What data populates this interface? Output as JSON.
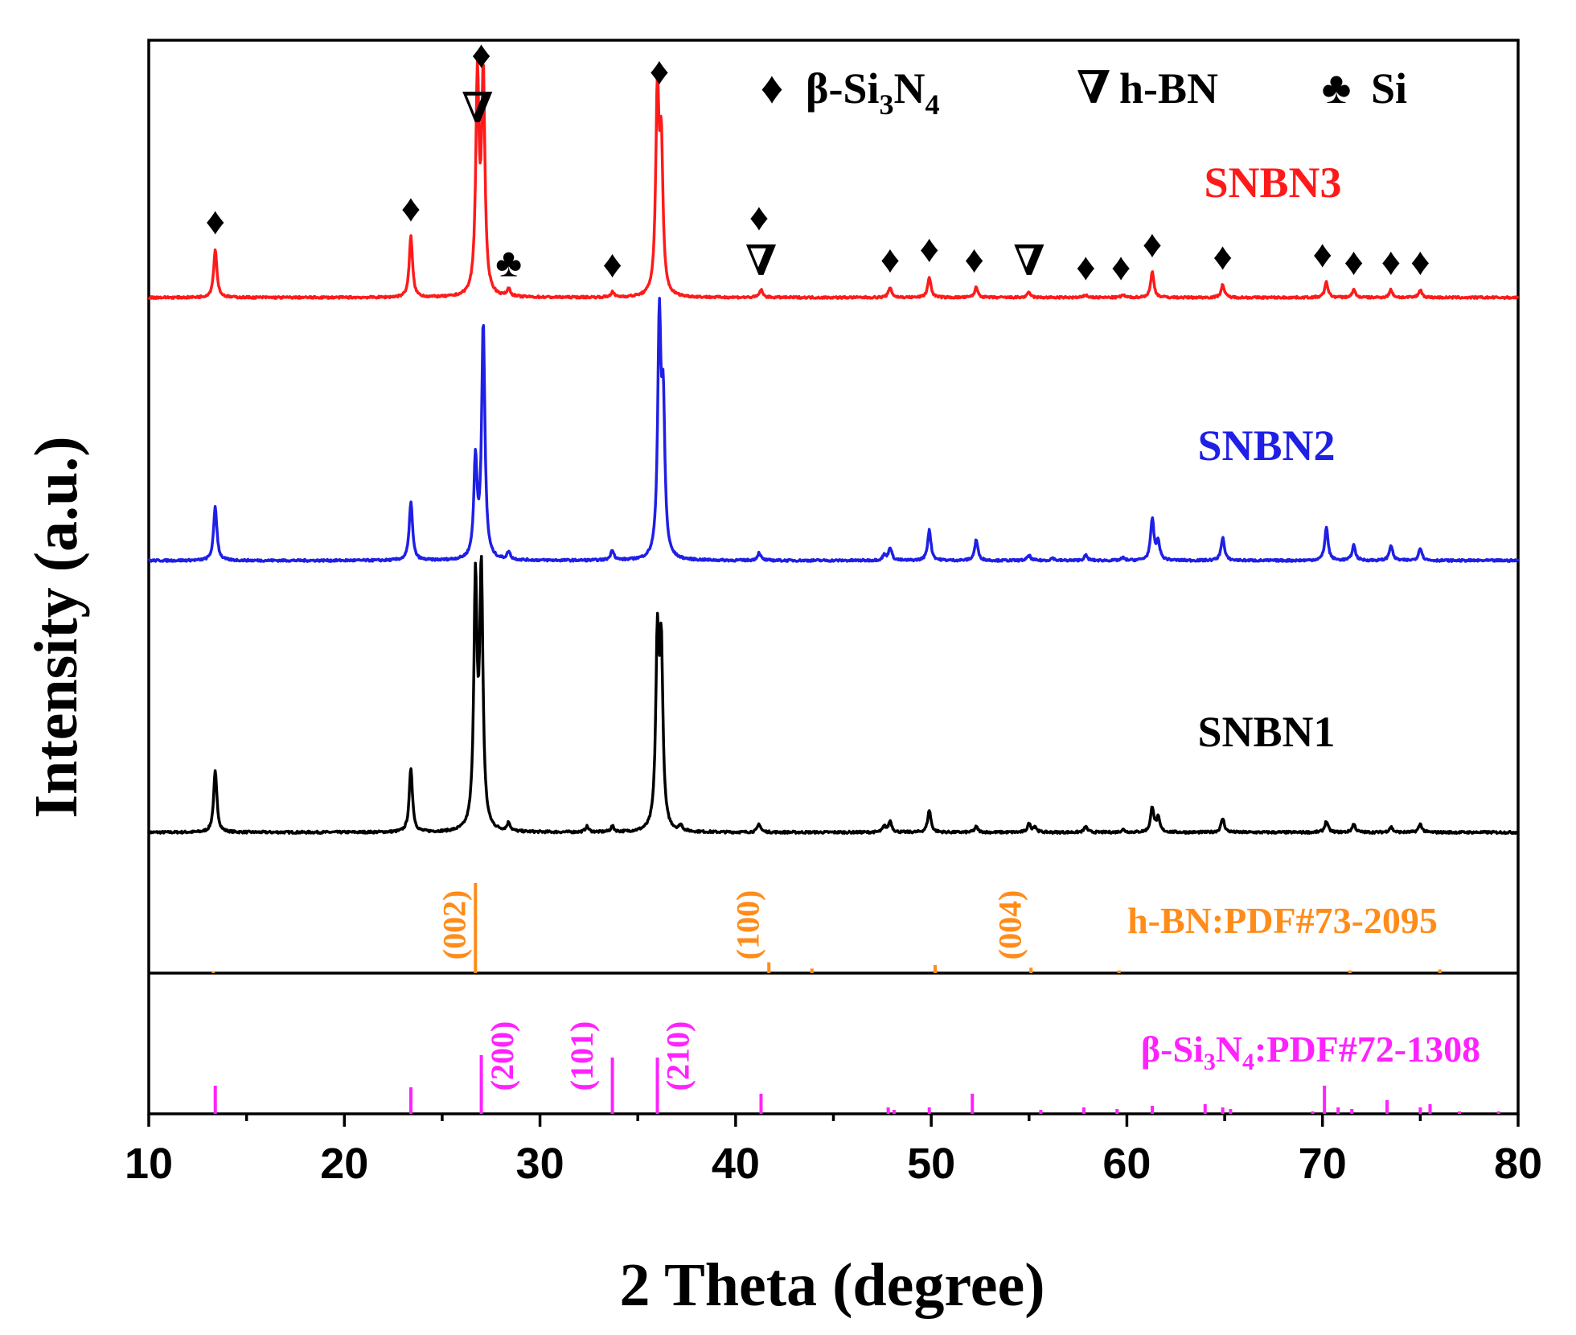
{
  "chart_data": {
    "type": "line",
    "title": "",
    "xlabel": "2 Theta (degree)",
    "ylabel": "Intensity (a.u.)",
    "xlim": [
      10,
      80
    ],
    "xticks": [
      10,
      20,
      30,
      40,
      50,
      60,
      70,
      80
    ],
    "colors": {
      "SNBN1": "#000000",
      "SNBN2": "#1f1fe6",
      "SNBN3": "#ff1a1a",
      "hBN": "#ff8c1a",
      "bSiN": "#ff22ff"
    },
    "series": [
      {
        "name": "SNBN1",
        "color_key": "SNBN1",
        "peaks": [
          [
            13.4,
            0.22
          ],
          [
            23.4,
            0.23
          ],
          [
            26.7,
            0.88
          ],
          [
            27.0,
            0.92
          ],
          [
            28.4,
            0.03
          ],
          [
            32.4,
            0.02
          ],
          [
            33.7,
            0.02
          ],
          [
            36.0,
            0.66
          ],
          [
            36.2,
            0.62
          ],
          [
            37.2,
            0.02
          ],
          [
            41.2,
            0.03
          ],
          [
            47.6,
            0.02
          ],
          [
            47.9,
            0.04
          ],
          [
            49.9,
            0.08
          ],
          [
            52.3,
            0.02
          ],
          [
            55.0,
            0.03
          ],
          [
            55.3,
            0.02
          ],
          [
            57.9,
            0.02
          ],
          [
            59.8,
            0.01
          ],
          [
            61.3,
            0.09
          ],
          [
            61.6,
            0.05
          ],
          [
            64.9,
            0.05
          ],
          [
            70.2,
            0.04
          ],
          [
            71.6,
            0.03
          ],
          [
            73.5,
            0.02
          ],
          [
            75.0,
            0.03
          ]
        ]
      },
      {
        "name": "SNBN2",
        "color_key": "SNBN2",
        "peaks": [
          [
            13.4,
            0.21
          ],
          [
            23.4,
            0.23
          ],
          [
            26.7,
            0.38
          ],
          [
            27.1,
            0.91
          ],
          [
            28.4,
            0.03
          ],
          [
            33.7,
            0.04
          ],
          [
            36.1,
            0.91
          ],
          [
            36.3,
            0.55
          ],
          [
            41.2,
            0.03
          ],
          [
            47.6,
            0.02
          ],
          [
            47.9,
            0.05
          ],
          [
            49.9,
            0.12
          ],
          [
            52.3,
            0.08
          ],
          [
            55.0,
            0.02
          ],
          [
            56.2,
            0.01
          ],
          [
            57.9,
            0.02
          ],
          [
            59.8,
            0.01
          ],
          [
            61.3,
            0.16
          ],
          [
            61.6,
            0.07
          ],
          [
            64.9,
            0.09
          ],
          [
            70.2,
            0.13
          ],
          [
            71.6,
            0.06
          ],
          [
            73.5,
            0.06
          ],
          [
            75.0,
            0.05
          ]
        ]
      },
      {
        "name": "SNBN3",
        "color_key": "SNBN3",
        "peaks": [
          [
            13.4,
            0.19
          ],
          [
            23.4,
            0.24
          ],
          [
            26.8,
            0.85
          ],
          [
            27.1,
            0.85
          ],
          [
            28.4,
            0.03
          ],
          [
            33.7,
            0.02
          ],
          [
            36.0,
            0.78
          ],
          [
            36.2,
            0.55
          ],
          [
            41.3,
            0.03
          ],
          [
            47.9,
            0.04
          ],
          [
            49.9,
            0.08
          ],
          [
            52.3,
            0.04
          ],
          [
            55.0,
            0.02
          ],
          [
            57.9,
            0.01
          ],
          [
            59.8,
            0.01
          ],
          [
            61.3,
            0.1
          ],
          [
            64.9,
            0.05
          ],
          [
            70.2,
            0.06
          ],
          [
            71.6,
            0.03
          ],
          [
            73.5,
            0.03
          ],
          [
            75.0,
            0.03
          ]
        ]
      }
    ],
    "series_labels": [
      "SNBN1",
      "SNBN2",
      "SNBN3"
    ],
    "reference_patterns": [
      {
        "name": "h-BN:PDF#73-2095",
        "color_key": "hBN",
        "lines": [
          [
            13.3,
            0.02
          ],
          [
            26.7,
            1.0
          ],
          [
            41.7,
            0.12
          ],
          [
            43.9,
            0.05
          ],
          [
            50.2,
            0.09
          ],
          [
            55.1,
            0.06
          ],
          [
            59.6,
            0.03
          ],
          [
            71.4,
            0.03
          ],
          [
            76.0,
            0.04
          ]
        ],
        "hkl": [
          {
            "label": "(002)",
            "x": 26.7
          },
          {
            "label": "(100)",
            "x": 41.7
          },
          {
            "label": "(004)",
            "x": 55.1
          }
        ]
      },
      {
        "name_prefix": "β-Si",
        "name_sub1": "3",
        "name_mid": "N",
        "name_sub2": "4",
        "name_suffix": ":PDF#72-1308",
        "color_key": "bSiN",
        "lines": [
          [
            13.4,
            0.35
          ],
          [
            23.4,
            0.33
          ],
          [
            27.0,
            0.73
          ],
          [
            33.7,
            0.7
          ],
          [
            36.0,
            0.7
          ],
          [
            41.3,
            0.25
          ],
          [
            47.8,
            0.08
          ],
          [
            48.1,
            0.05
          ],
          [
            49.9,
            0.08
          ],
          [
            52.1,
            0.25
          ],
          [
            55.6,
            0.05
          ],
          [
            57.8,
            0.08
          ],
          [
            59.5,
            0.06
          ],
          [
            61.3,
            0.1
          ],
          [
            64.0,
            0.12
          ],
          [
            64.9,
            0.08
          ],
          [
            65.3,
            0.06
          ],
          [
            69.5,
            0.03
          ],
          [
            70.1,
            0.35
          ],
          [
            70.8,
            0.08
          ],
          [
            71.5,
            0.06
          ],
          [
            73.3,
            0.17
          ],
          [
            75.0,
            0.08
          ],
          [
            75.5,
            0.12
          ],
          [
            77.0,
            0.03
          ],
          [
            79.0,
            0.03
          ]
        ],
        "hkl": [
          {
            "label": "(200)",
            "x": 27.0
          },
          {
            "label": "(101)",
            "x": 33.7
          },
          {
            "label": "(210)",
            "x": 36.0
          }
        ]
      }
    ],
    "legend": {
      "placement": "top-right",
      "entries": [
        {
          "symbol": "♦",
          "prefix": "β-Si",
          "sub1": "3",
          "mid": "N",
          "sub2": "4"
        },
        {
          "symbol": "∇",
          "text": "h-BN"
        },
        {
          "symbol": "♣",
          "text": "Si"
        }
      ]
    },
    "markers_snbn3": {
      "diamond": "♦",
      "triangle": "∇",
      "club": "♣",
      "diamond_x": [
        13.4,
        23.4,
        27.0,
        33.7,
        36.1,
        41.2,
        47.9,
        49.9,
        52.2,
        57.9,
        59.7,
        61.3,
        64.9,
        70.0,
        71.6,
        73.5,
        75.0
      ],
      "triangle_x": [
        26.8,
        41.3,
        55.0
      ],
      "club_x": [
        28.4
      ]
    }
  }
}
